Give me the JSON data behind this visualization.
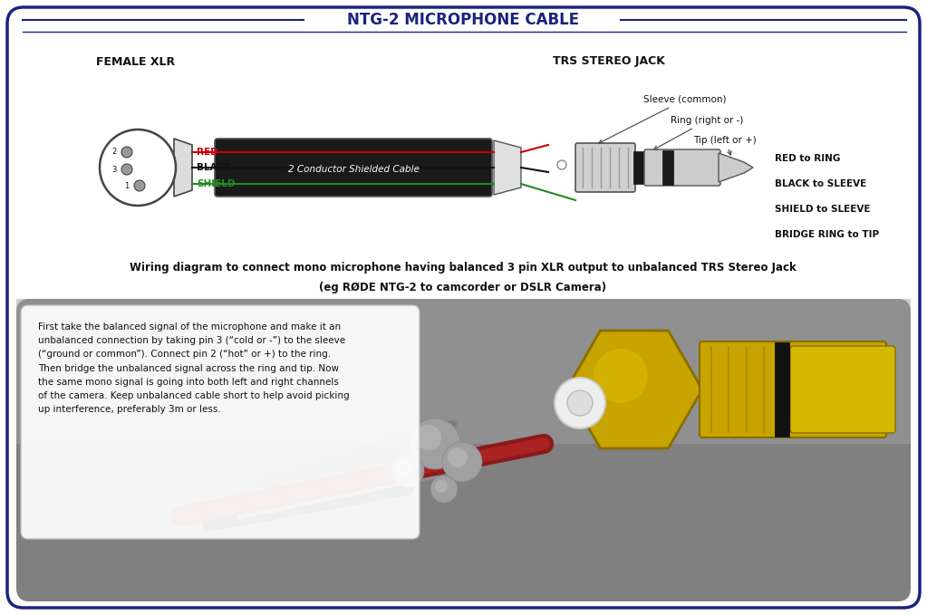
{
  "title": "NTG-2 MICROPHONE CABLE",
  "title_color": "#1a237e",
  "title_fontsize": 12,
  "border_color": "#1a237e",
  "background_color": "#ffffff",
  "label_female_xlr": "FEMALE XLR",
  "label_trs": "TRS STEREO JACK",
  "wire_labels": [
    "RED",
    "BLACK",
    "SHIELD"
  ],
  "wire_colors": [
    "#cc0000",
    "#111111",
    "#228B22"
  ],
  "cable_label": "2 Conductor Shielded Cable",
  "connection_labels": [
    "RED to RING",
    "BLACK to SLEEVE",
    "SHIELD to SLEEVE",
    "BRIDGE RING to TIP"
  ],
  "trs_labels": [
    "Sleeve (common)",
    "Ring (right or -)",
    "Tip (left or +)"
  ],
  "caption_line1": "Wiring diagram to connect mono microphone having balanced 3 pin XLR output to unbalanced TRS Stereo Jack",
  "caption_line2": "(eg RØDE NTG-2 to camcorder or DSLR Camera)",
  "info_text": "First take the balanced signal of the microphone and make it an\nunbalanced connection by taking pin 3 (“cold or -”) to the sleeve\n(“ground or common”). Connect pin 2 (“hot” or +) to the ring.\nThen bridge the unbalanced signal across the ring and tip. Now\nthe same mono signal is going into both left and right channels\nof the camera. Keep unbalanced cable short to help avoid picking\nup interference, preferably 3m or less.",
  "photo_bg_color": "#b8b8b8",
  "border_color2": "#2c3e8c"
}
